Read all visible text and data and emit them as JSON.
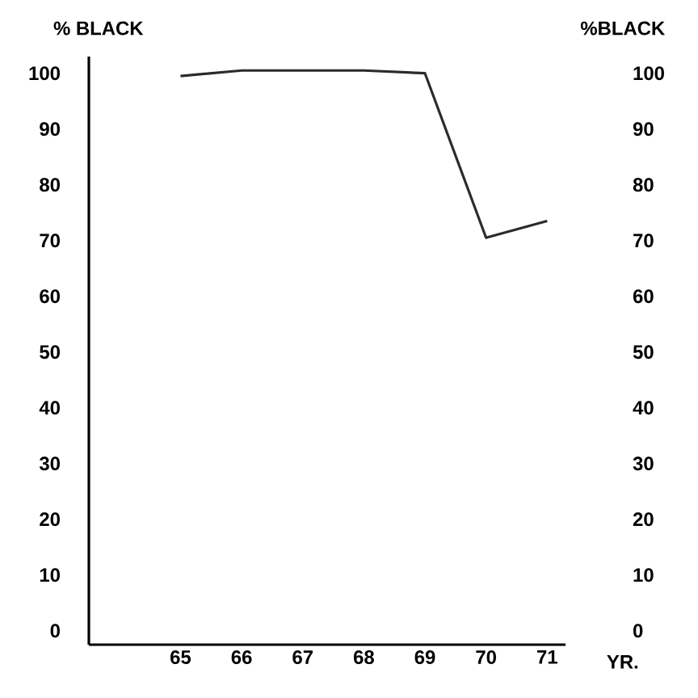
{
  "chart_data": {
    "type": "line",
    "ylabel": "% BLACK",
    "y2label": "%BLACK",
    "xlabel": "YR.",
    "x": [
      65,
      66,
      67,
      68,
      69,
      70,
      71
    ],
    "series": [
      {
        "color": "#2b2b2b",
        "values": [
          99.5,
          100.5,
          100.5,
          100.5,
          100,
          70.5,
          73.5
        ]
      }
    ],
    "xlim": [
      63.5,
      71.3
    ],
    "xticks": [
      65,
      66,
      67,
      68,
      69,
      70,
      71
    ],
    "ylim": [
      -2.5,
      103
    ],
    "yticks": [
      0,
      10,
      20,
      30,
      40,
      50,
      60,
      70,
      80,
      90,
      100
    ],
    "y2lim": [
      -2.5,
      103
    ],
    "y2ticks": [
      0,
      10,
      20,
      30,
      40,
      50,
      60,
      70,
      80,
      90,
      100
    ]
  }
}
